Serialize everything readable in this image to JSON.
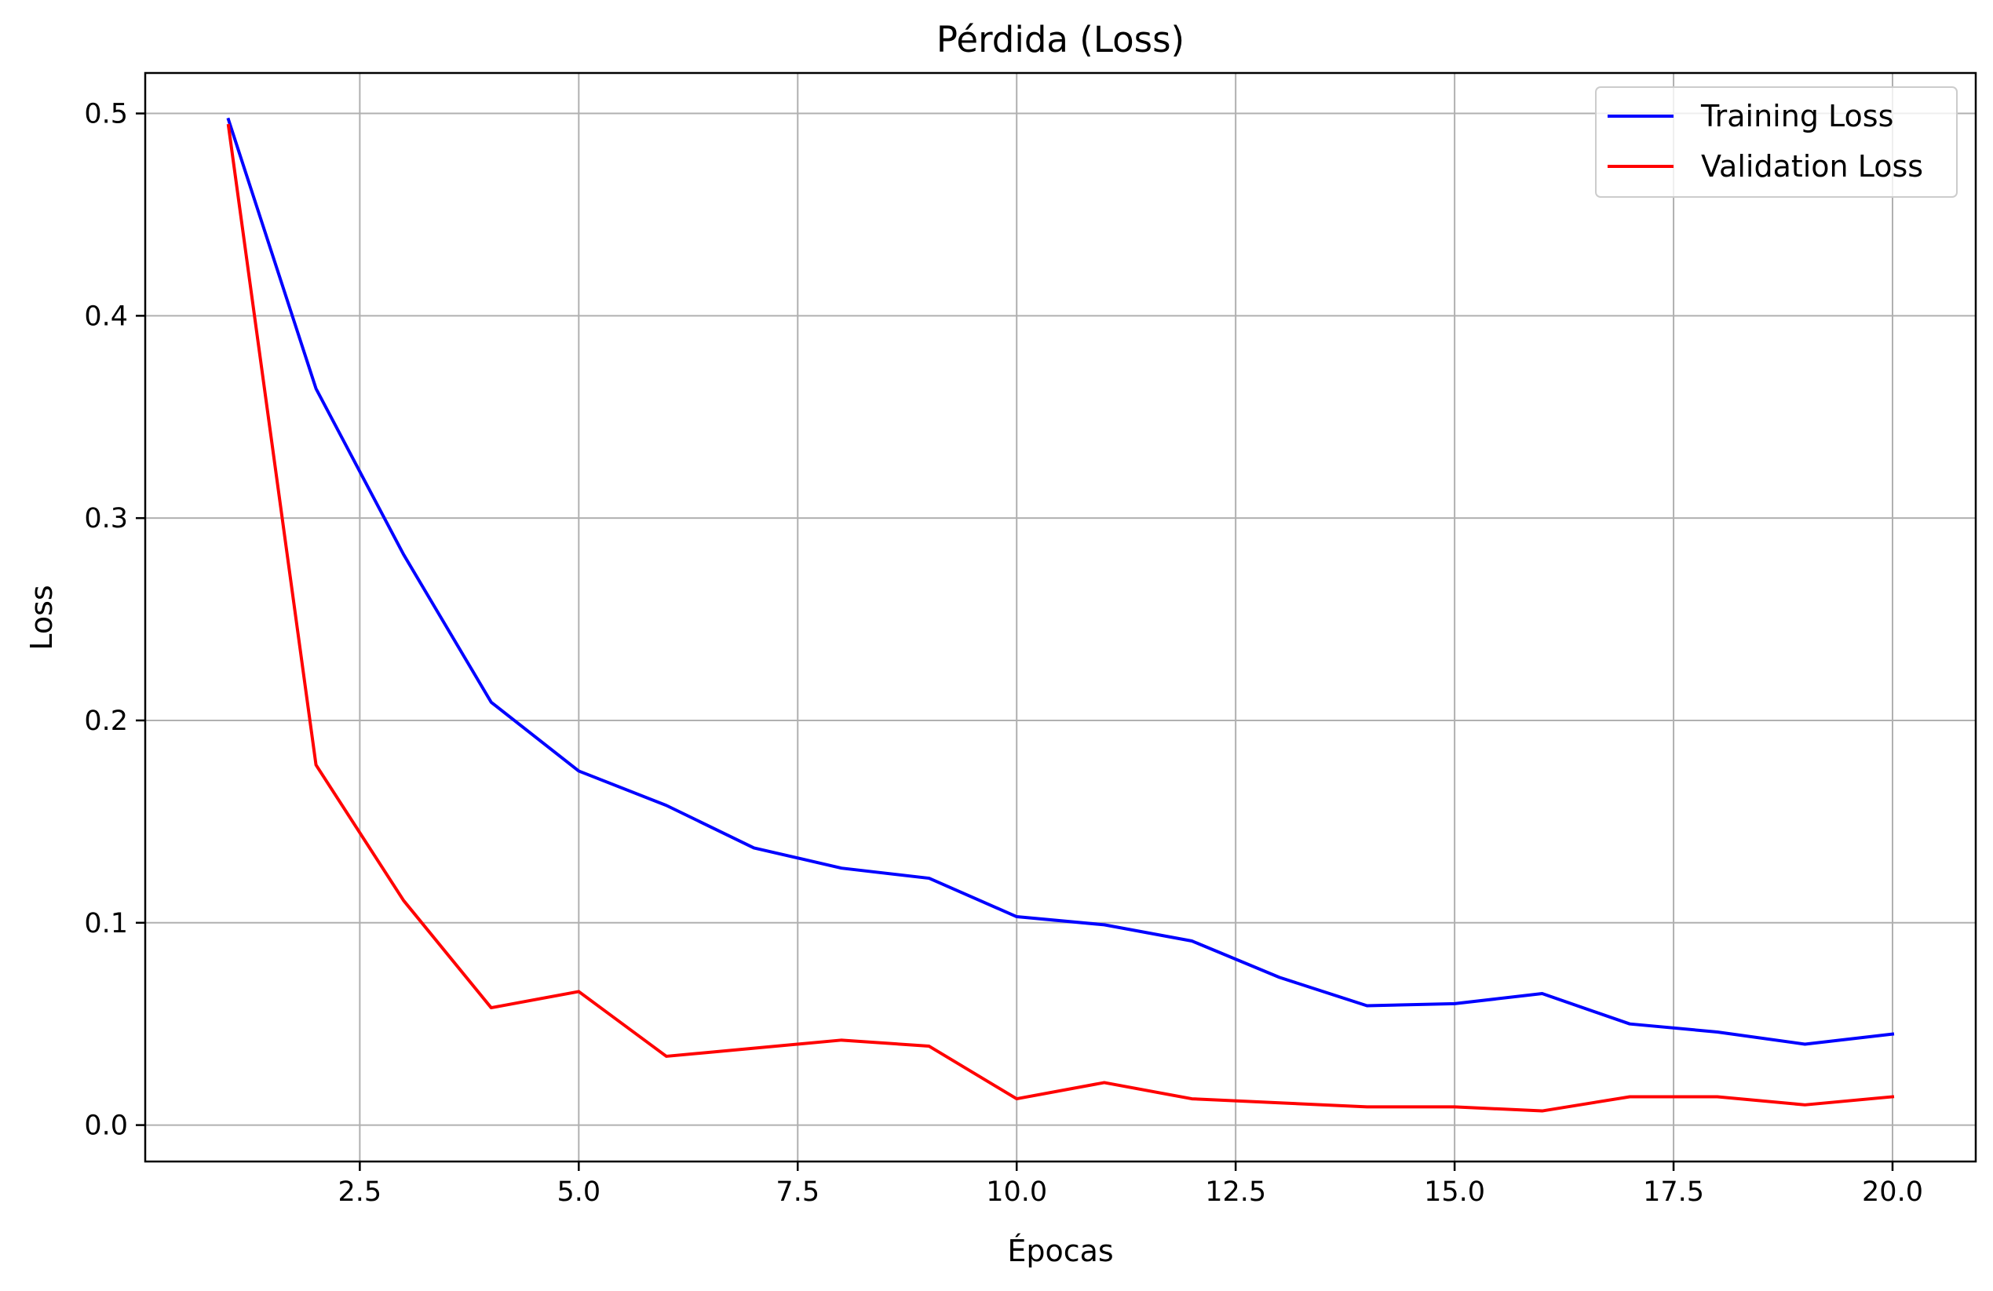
{
  "chart_data": {
    "type": "line",
    "title": "Pérdida (Loss)",
    "xlabel": "Épocas",
    "ylabel": "Loss",
    "xlim": [
      0.05,
      20.95
    ],
    "ylim": [
      -0.018,
      0.52
    ],
    "xticks": [
      2.5,
      5.0,
      7.5,
      10.0,
      12.5,
      15.0,
      17.5,
      20.0
    ],
    "xtick_labels": [
      "2.5",
      "5.0",
      "7.5",
      "10.0",
      "12.5",
      "15.0",
      "17.5",
      "20.0"
    ],
    "yticks": [
      0.0,
      0.1,
      0.2,
      0.3,
      0.4,
      0.5
    ],
    "ytick_labels": [
      "0.0",
      "0.1",
      "0.2",
      "0.3",
      "0.4",
      "0.5"
    ],
    "grid": true,
    "legend_position": "top-right",
    "x": [
      1,
      2,
      3,
      4,
      5,
      6,
      7,
      8,
      9,
      10,
      11,
      12,
      13,
      14,
      15,
      16,
      17,
      18,
      19,
      20
    ],
    "series": [
      {
        "name": "Training Loss",
        "color": "#0000ff",
        "values": [
          0.497,
          0.364,
          0.282,
          0.209,
          0.175,
          0.158,
          0.137,
          0.127,
          0.122,
          0.103,
          0.099,
          0.091,
          0.073,
          0.059,
          0.06,
          0.065,
          0.05,
          0.046,
          0.04,
          0.045
        ]
      },
      {
        "name": "Validation Loss",
        "color": "#ff0000",
        "values": [
          0.494,
          0.178,
          0.111,
          0.058,
          0.066,
          0.034,
          0.038,
          0.042,
          0.039,
          0.013,
          0.021,
          0.013,
          0.011,
          0.009,
          0.009,
          0.007,
          0.014,
          0.014,
          0.01,
          0.014
        ]
      }
    ]
  }
}
